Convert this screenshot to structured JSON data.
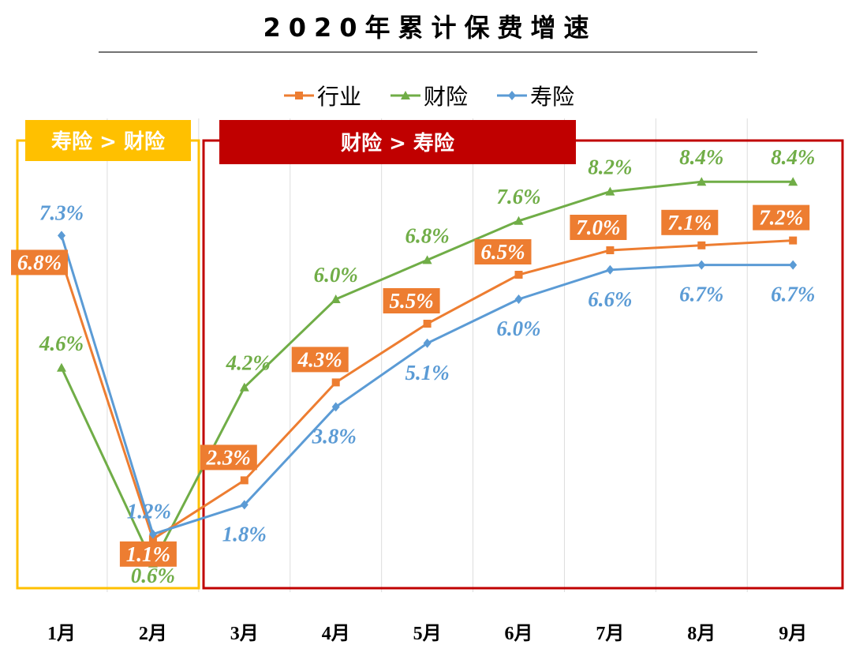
{
  "chart_data": {
    "type": "line",
    "title": "2020年累计保费增速",
    "categories": [
      "1月",
      "2月",
      "3月",
      "4月",
      "5月",
      "6月",
      "7月",
      "8月",
      "9月"
    ],
    "series": [
      {
        "name": "行业",
        "color": "#ED7D31",
        "marker": "square",
        "values": [
          6.8,
          1.1,
          2.3,
          4.3,
          5.5,
          6.5,
          7.0,
          7.1,
          7.2
        ],
        "labels": [
          "6.8%",
          "1.1%",
          "2.3%",
          "4.3%",
          "5.5%",
          "6.5%",
          "7.0%",
          "7.1%",
          "7.2%"
        ]
      },
      {
        "name": "财险",
        "color": "#70AD47",
        "marker": "triangle",
        "values": [
          4.6,
          0.6,
          4.2,
          6.0,
          6.8,
          7.6,
          8.2,
          8.4,
          8.4
        ],
        "labels": [
          "4.6%",
          "0.6%",
          "4.2%",
          "6.0%",
          "6.8%",
          "7.6%",
          "8.2%",
          "8.4%",
          "8.4%"
        ]
      },
      {
        "name": "寿险",
        "color": "#5B9BD5",
        "marker": "diamond",
        "values": [
          7.3,
          1.2,
          1.8,
          3.8,
          5.1,
          6.0,
          6.6,
          6.7,
          6.7
        ],
        "labels": [
          "7.3%",
          "1.2%",
          "1.8%",
          "3.8%",
          "5.1%",
          "6.0%",
          "6.6%",
          "6.7%",
          "6.7%"
        ]
      }
    ],
    "legend_position": "top",
    "grid": "vertical",
    "annotations": [
      {
        "text": "寿险 > 财险",
        "color": "#FFC000",
        "months": [
          "1月",
          "2月"
        ]
      },
      {
        "text": "财险 > 寿险",
        "color": "#C00000",
        "months": [
          "3月",
          "4月",
          "5月",
          "6月",
          "7月",
          "8月",
          "9月"
        ]
      }
    ]
  }
}
